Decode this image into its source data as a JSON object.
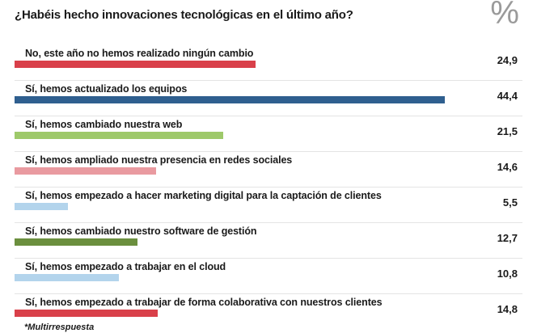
{
  "chart_data": {
    "type": "bar",
    "orientation": "horizontal",
    "title": "¿Habéis hecho innovaciones tecnológicas en el último año?",
    "unit": "%",
    "footnote": "*Multirrespuesta",
    "xlim": [
      0,
      50
    ],
    "grid": false,
    "categories": [
      "No, este año no hemos realizado ningún cambio",
      "Sí, hemos actualizado los equipos",
      "Sí, hemos cambiado nuestra web",
      "Sí, hemos ampliado nuestra presencia en redes sociales",
      "Sí, hemos empezado a hacer marketing digital para la captación de clientes",
      "Sí, hemos cambiado nuestro software de gestión",
      "Sí, hemos empezado a trabajar en el cloud",
      "Sí, hemos empezado a trabajar de forma colaborativa con nuestros clientes"
    ],
    "values": [
      24.9,
      44.4,
      21.5,
      14.6,
      5.5,
      12.7,
      10.8,
      14.8
    ],
    "value_labels": [
      "24,9",
      "44,4",
      "21,5",
      "14,6",
      "5,5",
      "12,7",
      "10,8",
      "14,8"
    ],
    "colors": [
      "#d9404a",
      "#2f5f8f",
      "#9ec96a",
      "#e99aa0",
      "#b3d4ec",
      "#6b8f3e",
      "#b3d4ec",
      "#d9404a"
    ]
  }
}
